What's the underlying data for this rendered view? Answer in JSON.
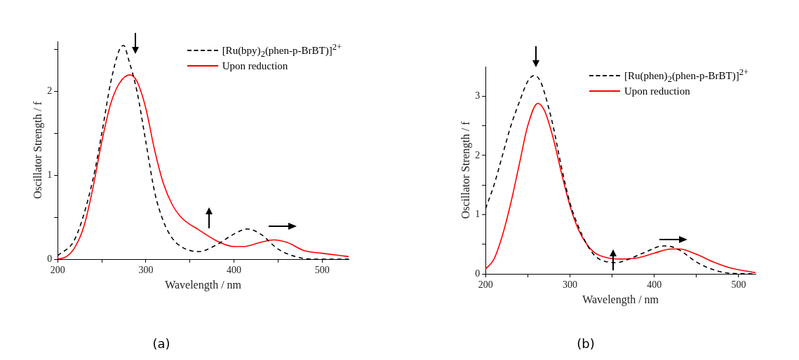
{
  "chart_data": [
    {
      "type": "line",
      "xlabel": "Wavelength / nm",
      "ylabel": "Oscillator Strength / f",
      "xlim": [
        200,
        530
      ],
      "xticks": [
        200,
        {
          "value": 250,
          "label": null
        },
        300,
        {
          "value": 350,
          "label": null
        },
        400,
        {
          "value": 450,
          "label": null
        },
        500
      ],
      "ylim": [
        0,
        2.6
      ],
      "yticks": [
        0,
        {
          "value": 0.5,
          "label": null
        },
        1,
        {
          "value": 1.5,
          "label": null
        },
        2,
        {
          "value": 2.5,
          "label": null
        }
      ],
      "grid": false,
      "legend": "top right",
      "marker": "none",
      "annotations": [
        "(a)"
      ],
      "series": [
        {
          "name": "[Ru(bpy)$_{2}$(phen-p-BrBT)]$^{2+}$",
          "color": "#000000",
          "line_style": "dashed",
          "x": [
            200,
            220,
            240,
            250,
            260,
            270,
            275,
            280,
            290,
            300,
            310,
            320,
            330,
            340,
            360,
            380,
            400,
            415,
            430,
            450,
            470,
            490,
            530
          ],
          "values": [
            0.04,
            0.25,
            0.95,
            1.5,
            2.1,
            2.5,
            2.55,
            2.4,
            2.0,
            1.4,
            0.8,
            0.45,
            0.25,
            0.15,
            0.09,
            0.17,
            0.3,
            0.36,
            0.3,
            0.12,
            0.03,
            0.0,
            0.0
          ]
        },
        {
          "name": "Upon reduction",
          "color": "#ff0000",
          "line_style": "solid",
          "x": [
            200,
            210,
            220,
            230,
            240,
            250,
            260,
            270,
            282,
            290,
            300,
            310,
            320,
            330,
            340,
            360,
            380,
            400,
            410,
            430,
            445,
            460,
            480,
            500,
            530
          ],
          "values": [
            0.0,
            0.03,
            0.15,
            0.4,
            0.85,
            1.4,
            1.85,
            2.1,
            2.2,
            2.12,
            1.8,
            1.3,
            0.9,
            0.65,
            0.5,
            0.35,
            0.22,
            0.15,
            0.15,
            0.2,
            0.23,
            0.2,
            0.1,
            0.07,
            0.03
          ]
        }
      ]
    },
    {
      "type": "line",
      "xlabel": "Wavelength / nm",
      "ylabel": "Oscillator Strength / f",
      "xlim": [
        200,
        520
      ],
      "xticks": [
        200,
        {
          "value": 250,
          "label": null
        },
        300,
        {
          "value": 350,
          "label": null
        },
        400,
        {
          "value": 450,
          "label": null
        },
        500
      ],
      "ylim": [
        0,
        3.5
      ],
      "yticks": [
        0,
        {
          "value": 0.5,
          "label": null
        },
        1,
        {
          "value": 1.5,
          "label": null
        },
        2,
        {
          "value": 2.5,
          "label": null
        },
        3
      ],
      "grid": false,
      "legend": "top right",
      "marker": "none",
      "annotations": [
        "(b)"
      ],
      "series": [
        {
          "name": "[Ru(phen)$_{2}$(phen-p-BrBT)]$^{2+}$",
          "color": "#000000",
          "line_style": "dashed",
          "x": [
            200,
            210,
            220,
            230,
            240,
            250,
            258,
            265,
            270,
            280,
            290,
            300,
            310,
            320,
            330,
            345,
            355,
            370,
            390,
            410,
            420,
            430,
            450,
            470,
            490,
            520
          ],
          "values": [
            1.1,
            1.5,
            2.0,
            2.5,
            2.9,
            3.25,
            3.35,
            3.25,
            3.05,
            2.5,
            1.8,
            1.2,
            0.8,
            0.5,
            0.3,
            0.2,
            0.19,
            0.25,
            0.37,
            0.47,
            0.46,
            0.4,
            0.2,
            0.07,
            0.01,
            0.0
          ]
        },
        {
          "name": "Upon reduction",
          "color": "#ff0000",
          "line_style": "solid",
          "x": [
            200,
            210,
            220,
            230,
            240,
            250,
            262,
            270,
            280,
            290,
            300,
            310,
            320,
            330,
            345,
            360,
            380,
            400,
            420,
            430,
            450,
            470,
            490,
            520
          ],
          "values": [
            0.08,
            0.25,
            0.65,
            1.2,
            1.85,
            2.5,
            2.88,
            2.75,
            2.3,
            1.7,
            1.15,
            0.75,
            0.5,
            0.35,
            0.27,
            0.25,
            0.27,
            0.35,
            0.42,
            0.42,
            0.33,
            0.2,
            0.1,
            0.02
          ]
        }
      ]
    }
  ]
}
